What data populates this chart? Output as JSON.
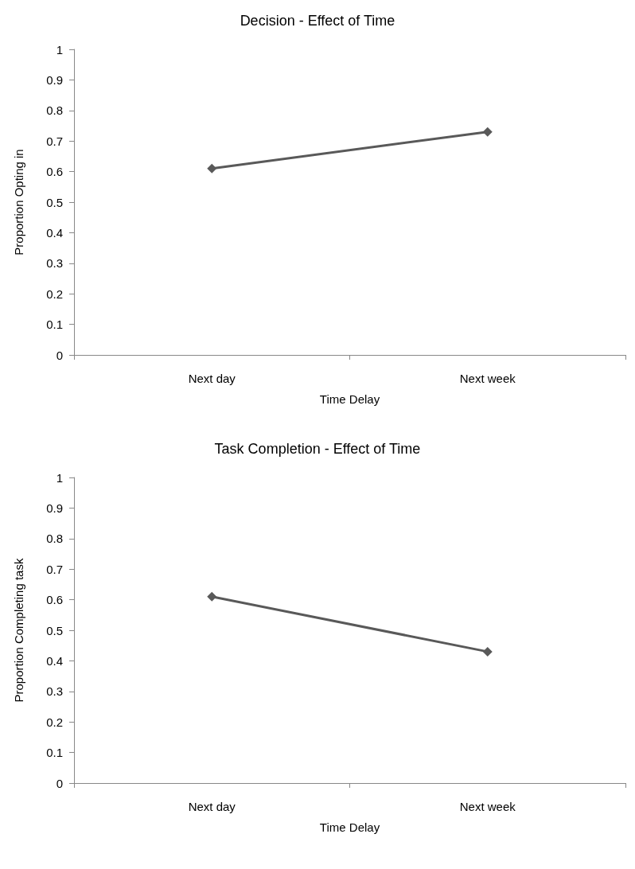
{
  "chart_data": [
    {
      "type": "line",
      "title": "Decision - Effect of Time",
      "xlabel": "Time Delay",
      "ylabel": "Proportion Opting in",
      "categories": [
        "Next day",
        "Next week"
      ],
      "series": [
        {
          "color": "#595959",
          "values": [
            0.61,
            0.73
          ]
        }
      ],
      "ylim": [
        0,
        1
      ],
      "yticks": [
        0,
        0.1,
        0.2,
        0.3,
        0.4,
        0.5,
        0.6,
        0.7,
        0.8,
        0.9,
        1
      ],
      "grid": false,
      "marker": "diamond",
      "line_style": "solid"
    },
    {
      "type": "line",
      "title": "Task Completion - Effect of Time",
      "xlabel": "Time Delay",
      "ylabel": "Proportion Completing task",
      "categories": [
        "Next day",
        "Next week"
      ],
      "series": [
        {
          "color": "#595959",
          "values": [
            0.61,
            0.43
          ]
        }
      ],
      "ylim": [
        0,
        1
      ],
      "yticks": [
        0,
        0.1,
        0.2,
        0.3,
        0.4,
        0.5,
        0.6,
        0.7,
        0.8,
        0.9,
        1
      ],
      "grid": false,
      "marker": "diamond",
      "line_style": "solid"
    }
  ]
}
